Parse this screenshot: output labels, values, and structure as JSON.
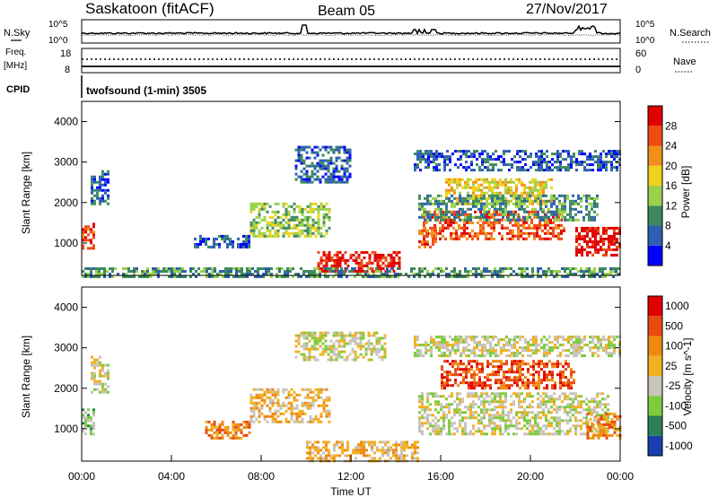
{
  "header": {
    "station": "Saskatoon (fitACF)",
    "beam": "Beam 05",
    "date": "27/Nov/2017"
  },
  "noise_panel": {
    "left_label": "N.Sky",
    "right_label": "N.Search",
    "left_ticks": [
      "10^5",
      "10^0"
    ],
    "right_ticks": [
      "10^5",
      "10^0"
    ]
  },
  "freq_panel": {
    "left_label_line1": "Freq.",
    "left_label_line2": "[MHz]",
    "right_label": "Nave",
    "left_ticks": [
      "18",
      "8"
    ],
    "right_ticks": [
      "60",
      "0"
    ]
  },
  "cpid": {
    "label": "CPID",
    "value": "twofsound (1-min) 3505"
  },
  "chart_data": [
    {
      "type": "heatmap",
      "parameter": "Power",
      "ylabel": "Slant Range [km]",
      "colorbar_label": "Power [dB]",
      "yticks": [
        1000,
        2000,
        3000,
        4000
      ],
      "colorbar_ticks": [
        "4",
        "8",
        "12",
        "16",
        "20",
        "24",
        "28"
      ],
      "colors": [
        "#0000ff",
        "#2e5fb0",
        "#3d8a5e",
        "#9ad14a",
        "#f0d21c",
        "#f0901a",
        "#f04a14",
        "#e00000"
      ],
      "features": [
        {
          "t0": 0.0,
          "t1": 0.5,
          "r0": 900,
          "r1": 1500,
          "level": 6
        },
        {
          "t0": 0.4,
          "t1": 1.2,
          "r0": 2000,
          "r1": 2800,
          "level": 1
        },
        {
          "t0": 5.0,
          "t1": 7.5,
          "r0": 900,
          "r1": 1200,
          "level": 1
        },
        {
          "t0": 7.5,
          "t1": 11.0,
          "r0": 1200,
          "r1": 2000,
          "level": 3
        },
        {
          "t0": 9.5,
          "t1": 12.0,
          "r0": 2500,
          "r1": 3400,
          "level": 1
        },
        {
          "t0": 10.5,
          "t1": 14.2,
          "r0": 300,
          "r1": 800,
          "level": 7
        },
        {
          "t0": 0.0,
          "t1": 24.0,
          "r0": 200,
          "r1": 400,
          "level": 2
        },
        {
          "t0": 15.0,
          "t1": 15.8,
          "r0": 900,
          "r1": 1400,
          "level": 6
        },
        {
          "t0": 15.2,
          "t1": 21.5,
          "r0": 1100,
          "r1": 1800,
          "level": 6
        },
        {
          "t0": 16.2,
          "t1": 21.0,
          "r0": 2000,
          "r1": 2600,
          "level": 4
        },
        {
          "t0": 15.0,
          "t1": 23.0,
          "r0": 1600,
          "r1": 2200,
          "level": 2
        },
        {
          "t0": 14.8,
          "t1": 24.0,
          "r0": 2800,
          "r1": 3300,
          "level": 1
        },
        {
          "t0": 22.0,
          "t1": 24.0,
          "r0": 700,
          "r1": 1400,
          "level": 7
        }
      ]
    },
    {
      "type": "heatmap",
      "parameter": "Velocity",
      "ylabel": "Slant Range [km]",
      "colorbar_label": "Velocity [m s^-1]",
      "yticks": [
        1000,
        2000,
        3000,
        4000
      ],
      "colorbar_ticks": [
        "1000",
        "500",
        "100",
        "25",
        "-25",
        "-100",
        "-500",
        "-1000"
      ],
      "colors": [
        "#1a3fae",
        "#2d7f5a",
        "#7ccc3c",
        "#c8c4bc",
        "#f2b022",
        "#ee8a14",
        "#e84a10",
        "#e00000"
      ],
      "features": [
        {
          "t0": 0.0,
          "t1": 0.5,
          "r0": 900,
          "r1": 1500,
          "level": 2
        },
        {
          "t0": 0.4,
          "t1": 1.2,
          "r0": 1900,
          "r1": 2800,
          "level": 3
        },
        {
          "t0": 5.5,
          "t1": 7.5,
          "r0": 800,
          "r1": 1200,
          "level": 5
        },
        {
          "t0": 7.5,
          "t1": 11.0,
          "r0": 1200,
          "r1": 2000,
          "level": 4
        },
        {
          "t0": 9.5,
          "t1": 13.5,
          "r0": 2700,
          "r1": 3400,
          "level": 3
        },
        {
          "t0": 10.0,
          "t1": 15.0,
          "r0": 200,
          "r1": 700,
          "level": 4
        },
        {
          "t0": 15.0,
          "t1": 23.5,
          "r0": 900,
          "r1": 1900,
          "level": 3
        },
        {
          "t0": 16.0,
          "t1": 22.0,
          "r0": 2000,
          "r1": 2700,
          "level": 6
        },
        {
          "t0": 14.8,
          "t1": 24.0,
          "r0": 2800,
          "r1": 3300,
          "level": 3
        },
        {
          "t0": 22.5,
          "t1": 24.0,
          "r0": 800,
          "r1": 1400,
          "level": 5
        }
      ]
    }
  ],
  "x_axis": {
    "ticks": [
      "00:00",
      "04:00",
      "08:00",
      "12:00",
      "16:00",
      "20:00",
      "00:00"
    ],
    "label": "Time UT"
  }
}
